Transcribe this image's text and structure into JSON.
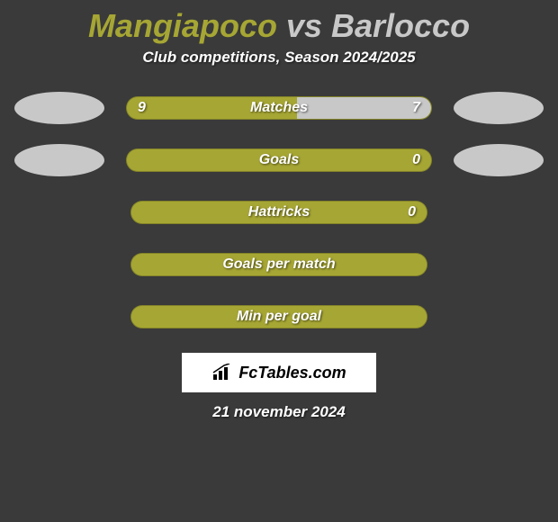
{
  "title": {
    "player1": "Mangiapoco",
    "vs": " vs ",
    "player2": "Barlocco"
  },
  "subtitle": "Club competitions, Season 2024/2025",
  "colors": {
    "player1": "#a6a634",
    "player2": "#c8c8c8",
    "bar_bg": "#a6a634",
    "background": "#3a3a3a",
    "oval_left": "#c8c8c8",
    "oval_right": "#c8c8c8"
  },
  "rows": [
    {
      "label": "Matches",
      "left_value": "9",
      "right_value": "7",
      "left_fill_pct": 56,
      "right_fill_pct": 44,
      "left_fill_color": "#a6a634",
      "right_fill_color": "#c8c8c8",
      "show_ovals": true
    },
    {
      "label": "Goals",
      "left_value": "",
      "right_value": "0",
      "left_fill_pct": 100,
      "right_fill_pct": 0,
      "left_fill_color": "#a6a634",
      "right_fill_color": "#c8c8c8",
      "show_ovals": true
    },
    {
      "label": "Hattricks",
      "left_value": "",
      "right_value": "0",
      "left_fill_pct": 100,
      "right_fill_pct": 0,
      "left_fill_color": "#a6a634",
      "right_fill_color": "#c8c8c8",
      "show_ovals": false
    },
    {
      "label": "Goals per match",
      "left_value": "",
      "right_value": "",
      "left_fill_pct": 100,
      "right_fill_pct": 0,
      "left_fill_color": "#a6a634",
      "right_fill_color": "#c8c8c8",
      "show_ovals": false
    },
    {
      "label": "Min per goal",
      "left_value": "",
      "right_value": "",
      "left_fill_pct": 100,
      "right_fill_pct": 0,
      "left_fill_color": "#a6a634",
      "right_fill_color": "#c8c8c8",
      "show_ovals": false
    }
  ],
  "logo": {
    "text": "FcTables.com"
  },
  "date": "21 november 2024"
}
